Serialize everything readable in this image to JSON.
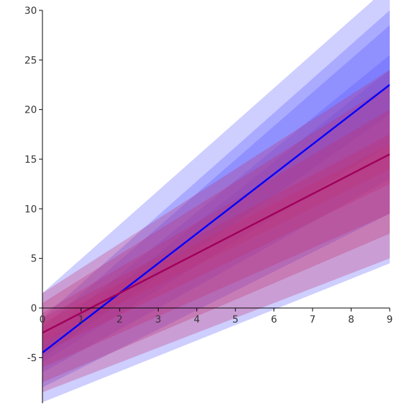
{
  "chart_data": {
    "type": "line",
    "title": "",
    "xlabel": "",
    "ylabel": "",
    "xlim": [
      0,
      9
    ],
    "ylim": [
      -9.5,
      30
    ],
    "x_ticks": [
      0,
      1,
      2,
      3,
      4,
      5,
      6,
      7,
      8,
      9
    ],
    "y_ticks": [
      -5,
      0,
      5,
      10,
      15,
      20,
      25,
      30
    ],
    "grid": false,
    "legend": "none",
    "series": [
      {
        "color": "#0000ff",
        "x": [
          0,
          9
        ],
        "y": [
          -4.5,
          22.5
        ],
        "bands": [
          {
            "lower": [
              -9.5,
              4.5
            ],
            "upper": [
              1.5,
              32.5
            ],
            "color": "#5050ff",
            "opacity": 0.28
          },
          {
            "lower": [
              -8.0,
              9.5
            ],
            "upper": [
              -1.0,
              30.0
            ],
            "color": "#5050ff",
            "opacity": 0.28
          },
          {
            "lower": [
              -6.5,
              13.0
            ],
            "upper": [
              -2.0,
              28.5
            ],
            "color": "#5050ff",
            "opacity": 0.28
          },
          {
            "lower": [
              -5.5,
              16.5
            ],
            "upper": [
              -3.0,
              25.5
            ],
            "color": "#5050ff",
            "opacity": 0.28
          },
          {
            "lower": [
              -5.0,
              19.5
            ],
            "upper": [
              -3.8,
              24.0
            ],
            "color": "#5050ff",
            "opacity": 0.28
          }
        ]
      },
      {
        "color": "#a0005a",
        "x": [
          0,
          9
        ],
        "y": [
          -2.5,
          15.5
        ],
        "bands": [
          {
            "lower": [
              -8.5,
              5.0
            ],
            "upper": [
              1.5,
              24.0
            ],
            "color": "#c03070",
            "opacity": 0.3
          },
          {
            "lower": [
              -7.5,
              7.5
            ],
            "upper": [
              0.5,
              22.5
            ],
            "color": "#c03070",
            "opacity": 0.3
          },
          {
            "lower": [
              -6.0,
              9.5
            ],
            "upper": [
              -0.5,
              20.0
            ],
            "color": "#c03070",
            "opacity": 0.3
          },
          {
            "lower": [
              -4.5,
              12.5
            ],
            "upper": [
              -1.0,
              17.5
            ],
            "color": "#c03070",
            "opacity": 0.3
          },
          {
            "lower": [
              -3.5,
              14.0
            ],
            "upper": [
              -1.5,
              16.5
            ],
            "color": "#c03070",
            "opacity": 0.3
          }
        ]
      }
    ]
  }
}
